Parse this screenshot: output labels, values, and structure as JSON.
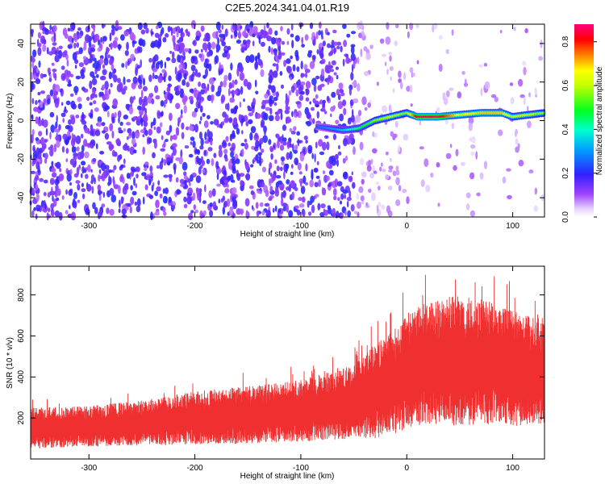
{
  "title": "C2E5.2024.341.04.01.R19",
  "chart_data": [
    {
      "type": "heatmap",
      "xlabel": "Height of straight line (km)",
      "ylabel": "Frequency (Hz)",
      "xlim": [
        -355,
        130
      ],
      "ylim": [
        -50,
        50
      ],
      "xticks": [
        -300,
        -200,
        -100,
        0,
        100
      ],
      "yticks": [
        -40,
        -20,
        0,
        20,
        40
      ],
      "colorbar": {
        "label": "Normalized spectral amplitude",
        "range": [
          0,
          0.88
        ],
        "ticks": [
          0.0,
          0.2,
          0.4,
          0.6,
          0.8
        ],
        "colormap": "rainbow (white-purple-blue-cyan-green-yellow-red-magenta)"
      },
      "ridge": {
        "description": "narrow high-amplitude frequency line",
        "x": [
          -85,
          -60,
          -45,
          -30,
          -15,
          0,
          10,
          30,
          50,
          70,
          90,
          100,
          115,
          130
        ],
        "freq": [
          -3,
          -5,
          -4,
          0,
          2,
          4,
          2,
          2,
          3,
          4,
          4,
          2,
          3,
          4
        ],
        "amplitude": [
          0.25,
          0.35,
          0.45,
          0.55,
          0.6,
          0.55,
          0.85,
          0.85,
          0.65,
          0.7,
          0.7,
          0.6,
          0.6,
          0.55
        ]
      }
    },
    {
      "type": "line",
      "xlabel": "Height of straight line (km)",
      "ylabel": "SNR (10 * v/v)",
      "xlim": [
        -355,
        130
      ],
      "ylim": [
        0,
        940
      ],
      "xticks": [
        -300,
        -200,
        -100,
        0,
        100
      ],
      "yticks": [
        200,
        400,
        600,
        800
      ],
      "color": "#f03030",
      "series": [
        {
          "name": "SNR",
          "x": [
            -355,
            -300,
            -250,
            -200,
            -150,
            -100,
            -50,
            -30,
            -10,
            0,
            20,
            50,
            80,
            100,
            130
          ],
          "mean": [
            150,
            160,
            175,
            200,
            215,
            235,
            280,
            330,
            380,
            430,
            470,
            480,
            470,
            440,
            430
          ],
          "spread": [
            100,
            100,
            110,
            130,
            140,
            150,
            180,
            230,
            260,
            280,
            300,
            320,
            300,
            280,
            260
          ]
        }
      ]
    }
  ]
}
